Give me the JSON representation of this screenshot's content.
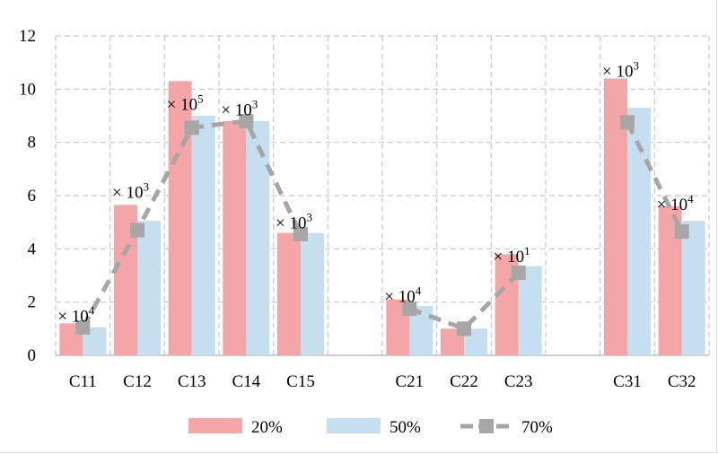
{
  "chart_data": {
    "type": "bar",
    "categories": [
      "C11",
      "C12",
      "C13",
      "C14",
      "C15",
      "",
      "C21",
      "C22",
      "C23",
      "",
      "C31",
      "C32"
    ],
    "ylim": [
      0,
      12
    ],
    "yticks": [
      0,
      2,
      4,
      6,
      8,
      10,
      12
    ],
    "grid": true,
    "legend_position": "bottom",
    "series": [
      {
        "name": "20%",
        "type": "bar",
        "color": "#f4a6a6",
        "values": [
          1.2,
          5.65,
          10.3,
          8.8,
          4.6,
          null,
          2.1,
          1.0,
          3.8,
          null,
          10.4,
          5.6
        ]
      },
      {
        "name": "50%",
        "type": "bar",
        "color": "#c5dff0",
        "values": [
          1.05,
          5.05,
          9.0,
          8.8,
          4.6,
          null,
          1.85,
          1.0,
          3.35,
          null,
          9.3,
          5.05
        ]
      },
      {
        "name": "70%",
        "type": "line",
        "color": "#a6a6a6",
        "dashed": true,
        "values": [
          1.05,
          4.7,
          8.55,
          8.8,
          4.55,
          null,
          1.75,
          1.0,
          3.1,
          null,
          8.75,
          4.65
        ]
      }
    ],
    "annotations": [
      {
        "category": "C11",
        "mark": "×",
        "base": "10",
        "exp": "4",
        "y": 1.5
      },
      {
        "category": "C12",
        "mark": "×",
        "base": "10",
        "exp": "3",
        "y": 6.15
      },
      {
        "category": "C13",
        "mark": "×",
        "base": "10",
        "exp": "5",
        "y": 9.45
      },
      {
        "category": "C14",
        "mark": "×",
        "base": "10",
        "exp": "3",
        "y": 9.25
      },
      {
        "category": "C15",
        "mark": "×",
        "base": "10",
        "exp": "3",
        "y": 5.0
      },
      {
        "category": "C21",
        "mark": "×",
        "base": "10",
        "exp": "4",
        "y": 2.25
      },
      {
        "category": "C23",
        "mark": "×",
        "base": "10",
        "exp": "1",
        "y": 3.75
      },
      {
        "category": "C31",
        "mark": "×",
        "base": "10",
        "exp": "3",
        "y": 10.7
      },
      {
        "category": "C32",
        "mark": "×",
        "base": "10",
        "exp": "4",
        "y": 5.7
      }
    ]
  }
}
